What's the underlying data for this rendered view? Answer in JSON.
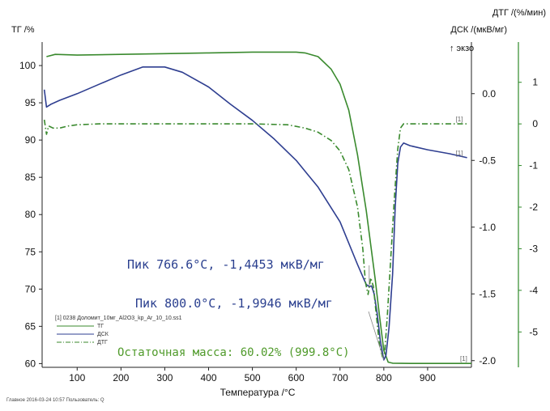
{
  "chart_data": {
    "type": "line",
    "title": "",
    "xlabel": "Температура /°С",
    "xlim": [
      20,
      1000
    ],
    "x_ticks": [
      100,
      200,
      300,
      400,
      500,
      600,
      700,
      800,
      900
    ],
    "left_axis": {
      "label": "ТГ /%",
      "ylim": [
        59.5,
        102.5
      ],
      "ticks": [
        60,
        65,
        70,
        75,
        80,
        85,
        90,
        95,
        100
      ]
    },
    "right_axis_1": {
      "label": "ДСК /(мкВ/мг)",
      "exo_label": "↑ экзо",
      "ylim": [
        -2.05,
        0.35
      ],
      "ticks": [
        0.0,
        -0.5,
        -1.0,
        -1.5,
        -2.0
      ],
      "tick_labels": [
        "0.0",
        "-0.5",
        "-1.0",
        "-1.5",
        "-2.0"
      ]
    },
    "right_axis_2": {
      "label": "ДТГ /(%/мин)",
      "ylim": [
        -5.85,
        1.85
      ],
      "ticks": [
        1,
        0,
        -1,
        -2,
        -3,
        -4,
        -5
      ],
      "tick_labels": [
        "1",
        "0",
        "-1",
        "-2",
        "-3",
        "-4",
        "-5"
      ]
    },
    "series": [
      {
        "name": "ТГ",
        "axis": "left",
        "color": "#3a8a2e",
        "style": "solid",
        "points": [
          [
            30,
            101.2
          ],
          [
            50,
            101.5
          ],
          [
            100,
            101.4
          ],
          [
            200,
            101.5
          ],
          [
            300,
            101.6
          ],
          [
            400,
            101.7
          ],
          [
            500,
            101.8
          ],
          [
            600,
            101.8
          ],
          [
            620,
            101.7
          ],
          [
            650,
            101.2
          ],
          [
            680,
            99.5
          ],
          [
            700,
            97.5
          ],
          [
            720,
            94.0
          ],
          [
            740,
            88.0
          ],
          [
            760,
            80.5
          ],
          [
            780,
            71.5
          ],
          [
            790,
            66.5
          ],
          [
            800,
            61.8
          ],
          [
            810,
            60.2
          ],
          [
            820,
            60.05
          ],
          [
            860,
            60.02
          ],
          [
            950,
            60.02
          ],
          [
            1000,
            60.02
          ]
        ]
      },
      {
        "name": "ДСК",
        "axis": "right_1",
        "color": "#2e3e90",
        "style": "solid",
        "points": [
          [
            25,
            0.03
          ],
          [
            30,
            -0.1
          ],
          [
            40,
            -0.08
          ],
          [
            60,
            -0.05
          ],
          [
            100,
            0.0
          ],
          [
            150,
            0.07
          ],
          [
            200,
            0.14
          ],
          [
            250,
            0.2
          ],
          [
            300,
            0.2
          ],
          [
            340,
            0.16
          ],
          [
            400,
            0.05
          ],
          [
            450,
            -0.08
          ],
          [
            500,
            -0.2
          ],
          [
            550,
            -0.34
          ],
          [
            600,
            -0.5
          ],
          [
            650,
            -0.7
          ],
          [
            700,
            -0.96
          ],
          [
            740,
            -1.28
          ],
          [
            756,
            -1.4
          ],
          [
            760,
            -1.43
          ],
          [
            766.6,
            -1.4453
          ],
          [
            772,
            -1.44
          ],
          [
            778,
            -1.5
          ],
          [
            785,
            -1.65
          ],
          [
            792,
            -1.85
          ],
          [
            800,
            -1.9946
          ],
          [
            805,
            -1.96
          ],
          [
            812,
            -1.75
          ],
          [
            820,
            -1.35
          ],
          [
            826,
            -0.85
          ],
          [
            832,
            -0.52
          ],
          [
            838,
            -0.4
          ],
          [
            845,
            -0.37
          ],
          [
            860,
            -0.39
          ],
          [
            900,
            -0.42
          ],
          [
            950,
            -0.45
          ],
          [
            990,
            -0.48
          ]
        ]
      },
      {
        "name": "ДТГ",
        "axis": "right_2",
        "color": "#3a8a2e",
        "style": "dashdot",
        "points": [
          [
            25,
            0.1
          ],
          [
            30,
            -0.25
          ],
          [
            35,
            -0.05
          ],
          [
            45,
            -0.1
          ],
          [
            60,
            -0.1
          ],
          [
            80,
            -0.05
          ],
          [
            100,
            -0.02
          ],
          [
            150,
            0.0
          ],
          [
            200,
            0.0
          ],
          [
            300,
            0.0
          ],
          [
            400,
            0.0
          ],
          [
            500,
            0.0
          ],
          [
            580,
            -0.02
          ],
          [
            620,
            -0.1
          ],
          [
            650,
            -0.2
          ],
          [
            680,
            -0.4
          ],
          [
            700,
            -0.65
          ],
          [
            720,
            -1.1
          ],
          [
            740,
            -2.0
          ],
          [
            752,
            -3.0
          ],
          [
            758,
            -3.8
          ],
          [
            764,
            -4.1
          ],
          [
            770,
            -3.7
          ],
          [
            776,
            -3.9
          ],
          [
            782,
            -4.5
          ],
          [
            790,
            -5.3
          ],
          [
            797,
            -5.6
          ],
          [
            802,
            -5.5
          ],
          [
            808,
            -4.6
          ],
          [
            816,
            -3.2
          ],
          [
            824,
            -1.8
          ],
          [
            832,
            -0.6
          ],
          [
            838,
            -0.1
          ],
          [
            845,
            0.0
          ],
          [
            900,
            0.0
          ],
          [
            990,
            0.0
          ]
        ]
      }
    ],
    "annotations": [
      {
        "text": "Пик  766.6°C, -1,4453 мкВ/мг",
        "x": 766.6,
        "value": -1.4453,
        "color": "#2a3f8f"
      },
      {
        "text": "Пик  800.0°C, -1,9946 мкВ/мг",
        "x": 800.0,
        "value": -1.9946,
        "color": "#2a3f8f"
      },
      {
        "text": "Остаточная масса: 60.02% (999.8°C)",
        "x": 999.8,
        "value": 60.02,
        "color": "#4f9a2a"
      }
    ],
    "series_end_marks": [
      "[1]",
      "[1]",
      "[1]"
    ],
    "legend": {
      "placement": "bottom-left",
      "file": "[1] 0238 Доломит_10мг_Al2O3_kp_Ar_10_10.ss1",
      "items": [
        {
          "label": "ТГ",
          "color": "#3a8a2e",
          "style": "solid"
        },
        {
          "label": "ДСК",
          "color": "#2e3e90",
          "style": "solid"
        },
        {
          "label": "ДТГ",
          "color": "#3a8a2e",
          "style": "dashdot"
        }
      ]
    },
    "footer": "Главное   2016-03-24 10:57   Пользователь: Q"
  }
}
